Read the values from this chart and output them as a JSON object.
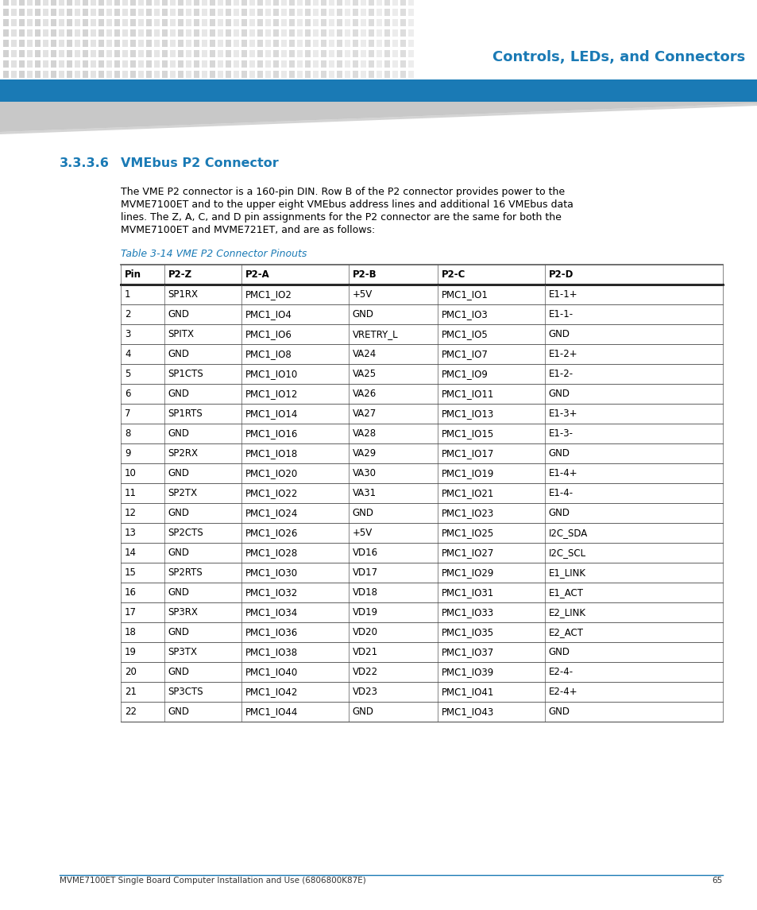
{
  "page_title": "Controls, LEDs, and Connectors",
  "section_number": "3.3.3.6",
  "section_title": "VMEbus P2 Connector",
  "body_text": "The VME P2 connector is a 160-pin DIN. Row B of the P2 connector provides power to the\nMVME7100ET and to the upper eight VMEbus address lines and additional 16 VMEbus data\nlines. The Z, A, C, and D pin assignments for the P2 connector are the same for both the\nMVME7100ET and MVME721ET, and are as follows:",
  "table_title": "Table 3-14 VME P2 Connector Pinouts",
  "footer_text": "MVME7100ET Single Board Computer Installation and Use (6806800K87E)",
  "footer_page": "65",
  "col_headers": [
    "Pin",
    "P2-Z",
    "P2-A",
    "P2-B",
    "P2-C",
    "P2-D"
  ],
  "table_data": [
    [
      "1",
      "SP1RX",
      "PMC1_IO2",
      "+5V",
      "PMC1_IO1",
      "E1-1+"
    ],
    [
      "2",
      "GND",
      "PMC1_IO4",
      "GND",
      "PMC1_IO3",
      "E1-1-"
    ],
    [
      "3",
      "SPITX",
      "PMC1_IO6",
      "VRETRY_L",
      "PMC1_IO5",
      "GND"
    ],
    [
      "4",
      "GND",
      "PMC1_IO8",
      "VA24",
      "PMC1_IO7",
      "E1-2+"
    ],
    [
      "5",
      "SP1CTS",
      "PMC1_IO10",
      "VA25",
      "PMC1_IO9",
      "E1-2-"
    ],
    [
      "6",
      "GND",
      "PMC1_IO12",
      "VA26",
      "PMC1_IO11",
      "GND"
    ],
    [
      "7",
      "SP1RTS",
      "PMC1_IO14",
      "VA27",
      "PMC1_IO13",
      "E1-3+"
    ],
    [
      "8",
      "GND",
      "PMC1_IO16",
      "VA28",
      "PMC1_IO15",
      "E1-3-"
    ],
    [
      "9",
      "SP2RX",
      "PMC1_IO18",
      "VA29",
      "PMC1_IO17",
      "GND"
    ],
    [
      "10",
      "GND",
      "PMC1_IO20",
      "VA30",
      "PMC1_IO19",
      "E1-4+"
    ],
    [
      "11",
      "SP2TX",
      "PMC1_IO22",
      "VA31",
      "PMC1_IO21",
      "E1-4-"
    ],
    [
      "12",
      "GND",
      "PMC1_IO24",
      "GND",
      "PMC1_IO23",
      "GND"
    ],
    [
      "13",
      "SP2CTS",
      "PMC1_IO26",
      "+5V",
      "PMC1_IO25",
      "I2C_SDA"
    ],
    [
      "14",
      "GND",
      "PMC1_IO28",
      "VD16",
      "PMC1_IO27",
      "I2C_SCL"
    ],
    [
      "15",
      "SP2RTS",
      "PMC1_IO30",
      "VD17",
      "PMC1_IO29",
      "E1_LINK"
    ],
    [
      "16",
      "GND",
      "PMC1_IO32",
      "VD18",
      "PMC1_IO31",
      "E1_ACT"
    ],
    [
      "17",
      "SP3RX",
      "PMC1_IO34",
      "VD19",
      "PMC1_IO33",
      "E2_LINK"
    ],
    [
      "18",
      "GND",
      "PMC1_IO36",
      "VD20",
      "PMC1_IO35",
      "E2_ACT"
    ],
    [
      "19",
      "SP3TX",
      "PMC1_IO38",
      "VD21",
      "PMC1_IO37",
      "GND"
    ],
    [
      "20",
      "GND",
      "PMC1_IO40",
      "VD22",
      "PMC1_IO39",
      "E2-4-"
    ],
    [
      "21",
      "SP3CTS",
      "PMC1_IO42",
      "VD23",
      "PMC1_IO41",
      "E2-4+"
    ],
    [
      "22",
      "GND",
      "PMC1_IO44",
      "GND",
      "PMC1_IO43",
      "GND"
    ]
  ],
  "blue_bar_color": "#1a7ab5",
  "section_title_color": "#1a7ab5",
  "table_title_color": "#1a7ab5",
  "body_text_color": "#000000",
  "background_color": "#ffffff",
  "dot_color_light": "#d8d8d8",
  "dot_color_dark": "#b0b0b0",
  "gray_wedge_color": "#c8c8c8"
}
